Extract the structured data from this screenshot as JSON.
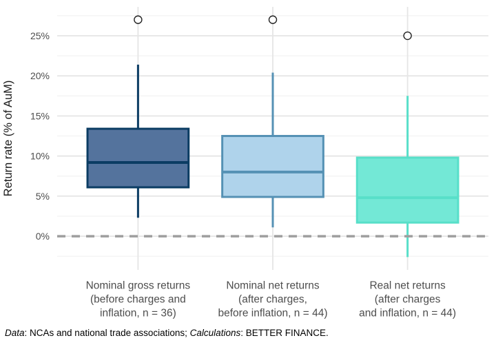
{
  "chart_data": {
    "type": "boxplot",
    "title": "",
    "xlabel": "",
    "ylabel": "Return rate (% of AuM)",
    "ylim": [
      -4.2,
      28.6
    ],
    "grid": "on",
    "legend": "none",
    "yticks": [
      {
        "value": 0,
        "label": "0%"
      },
      {
        "value": 5,
        "label": "5%"
      },
      {
        "value": 10,
        "label": "10%"
      },
      {
        "value": 15,
        "label": "15%"
      },
      {
        "value": 20,
        "label": "20%"
      },
      {
        "value": 25,
        "label": "25%"
      }
    ],
    "y_minor_gridlines": [
      -2.5,
      2.5,
      7.5,
      12.5,
      17.5,
      22.5,
      27.5
    ],
    "reference_line": {
      "value": 0,
      "style": "dashed",
      "color": "#9E9E9E"
    },
    "series": [
      {
        "name": "Nominal gross returns",
        "label_lines": [
          "Nominal gross returns",
          "(before charges and",
          "inflation, n = 36)"
        ],
        "whisker_low": 2.3,
        "q1": 6.1,
        "median": 9.2,
        "q3": 13.4,
        "whisker_high": 21.4,
        "outliers": [
          27.0
        ],
        "fill": "#54739D",
        "stroke": "#0B3C63"
      },
      {
        "name": "Nominal net returns",
        "label_lines": [
          "Nominal net returns",
          "(after charges,",
          "before inflation, n = 44)"
        ],
        "whisker_low": 1.1,
        "q1": 4.9,
        "median": 8.0,
        "q3": 12.5,
        "whisker_high": 20.4,
        "outliers": [
          27.0
        ],
        "fill": "#AFD3EB",
        "stroke": "#5591B4"
      },
      {
        "name": "Real net returns",
        "label_lines": [
          "Real net returns",
          "(after charges",
          "and inflation, n = 44)"
        ],
        "whisker_low": -2.6,
        "q1": 1.7,
        "median": 4.8,
        "q3": 9.8,
        "whisker_high": 17.5,
        "outliers": [
          25.0
        ],
        "fill": "#73E8D6",
        "stroke": "#58DFC9"
      }
    ],
    "styles": {
      "major_grid_color": "#E6E6E6",
      "minor_grid_color": "#F2F2F2",
      "tick_label_color": "#4D4D4D",
      "axis_title_color": "#1A1A1A",
      "category_label_color": "#4D4D4D",
      "outlier_stroke": "#222222",
      "panel_background": "#FFFFFF"
    }
  },
  "footer": {
    "segments": [
      {
        "text": "Data",
        "italic": true
      },
      {
        "text": ": NCAs and national trade associations; ",
        "italic": false
      },
      {
        "text": "Calculations",
        "italic": true
      },
      {
        "text": ": BETTER FINANCE.",
        "italic": false
      }
    ]
  }
}
